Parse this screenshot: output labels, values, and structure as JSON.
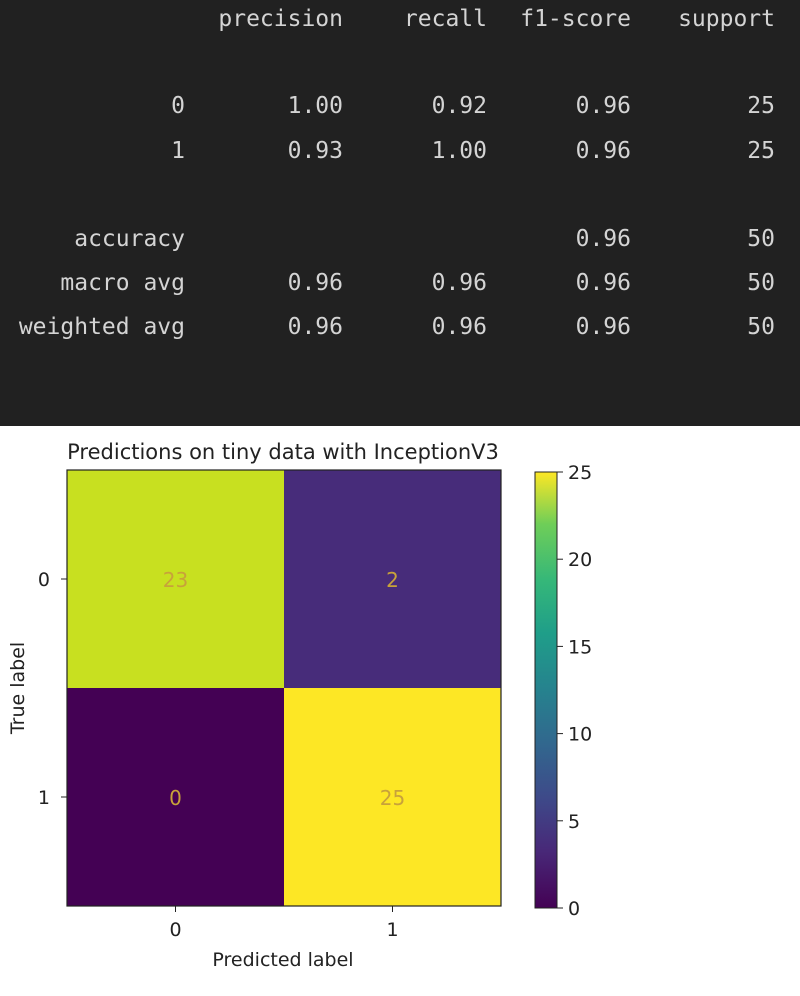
{
  "report": {
    "headers": [
      "precision",
      "recall",
      "f1-score",
      "support"
    ],
    "rows": [
      {
        "label": "0",
        "values": [
          "1.00",
          "0.92",
          "0.96",
          "25"
        ]
      },
      {
        "label": "1",
        "values": [
          "0.93",
          "1.00",
          "0.96",
          "25"
        ]
      },
      {
        "label": "accuracy",
        "values": [
          "",
          "",
          "0.96",
          "50"
        ]
      },
      {
        "label": "macro avg",
        "values": [
          "0.96",
          "0.96",
          "0.96",
          "50"
        ]
      },
      {
        "label": "weighted avg",
        "values": [
          "0.96",
          "0.96",
          "0.96",
          "50"
        ]
      }
    ]
  },
  "chart_data": {
    "type": "heatmap",
    "title": "Predictions on tiny data with InceptionV3",
    "xlabel": "Predicted label",
    "ylabel": "True label",
    "x_categories": [
      "0",
      "1"
    ],
    "y_categories": [
      "0",
      "1"
    ],
    "matrix": [
      [
        23,
        2
      ],
      [
        0,
        25
      ]
    ],
    "colormap": "viridis",
    "colorbar": {
      "min": 0,
      "max": 25,
      "ticks": [
        0,
        5,
        10,
        15,
        20,
        25
      ]
    },
    "cell_colors": [
      [
        "#c8e020",
        "#472c7a"
      ],
      [
        "#440154",
        "#fde725"
      ]
    ],
    "text_color": "#c8a23a"
  }
}
